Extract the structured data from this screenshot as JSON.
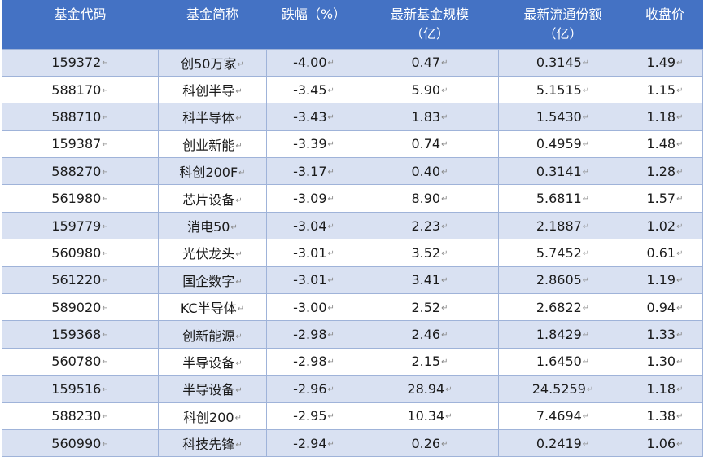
{
  "table": {
    "headers": [
      [
        "基金代码"
      ],
      [
        "基金简称"
      ],
      [
        "跌幅（%）"
      ],
      [
        "最新基金规模",
        "（亿）"
      ],
      [
        "最新流通份额",
        "（亿）"
      ],
      [
        "收盘价"
      ]
    ],
    "rows": [
      [
        "159372",
        "创50万家",
        "-4.00",
        "0.47",
        "0.3145",
        "1.49"
      ],
      [
        "588170",
        "科创半导",
        "-3.45",
        "5.90",
        "5.1515",
        "1.15"
      ],
      [
        "588710",
        "科半导体",
        "-3.43",
        "1.83",
        "1.5430",
        "1.18"
      ],
      [
        "159387",
        "创业新能",
        "-3.39",
        "0.74",
        "0.4959",
        "1.48"
      ],
      [
        "588270",
        "科创200F",
        "-3.17",
        "0.40",
        "0.3141",
        "1.28"
      ],
      [
        "561980",
        "芯片设备",
        "-3.09",
        "8.90",
        "5.6811",
        "1.57"
      ],
      [
        "159779",
        "消电50",
        "-3.04",
        "2.23",
        "2.1887",
        "1.02"
      ],
      [
        "560980",
        "光伏龙头",
        "-3.01",
        "3.52",
        "5.7452",
        "0.61"
      ],
      [
        "561220",
        "国企数字",
        "-3.01",
        "3.41",
        "2.8605",
        "1.19"
      ],
      [
        "589020",
        "KC半导体",
        "-3.00",
        "2.52",
        "2.6822",
        "0.94"
      ],
      [
        "159368",
        "创新能源",
        "-2.98",
        "2.46",
        "1.8429",
        "1.33"
      ],
      [
        "560780",
        "半导设备",
        "-2.98",
        "2.15",
        "1.6450",
        "1.30"
      ],
      [
        "159516",
        "半导设备",
        "-2.96",
        "28.94",
        "24.5259",
        "1.18"
      ],
      [
        "588230",
        "科创200",
        "-2.95",
        "10.34",
        "7.4694",
        "1.38"
      ],
      [
        "560990",
        "科技先锋",
        "-2.94",
        "0.26",
        "0.2419",
        "1.06"
      ]
    ]
  },
  "colors": {
    "header_bg": "#4472c4",
    "row_alt_bg": "#d9e1f2",
    "border": "#9fb3d9"
  }
}
